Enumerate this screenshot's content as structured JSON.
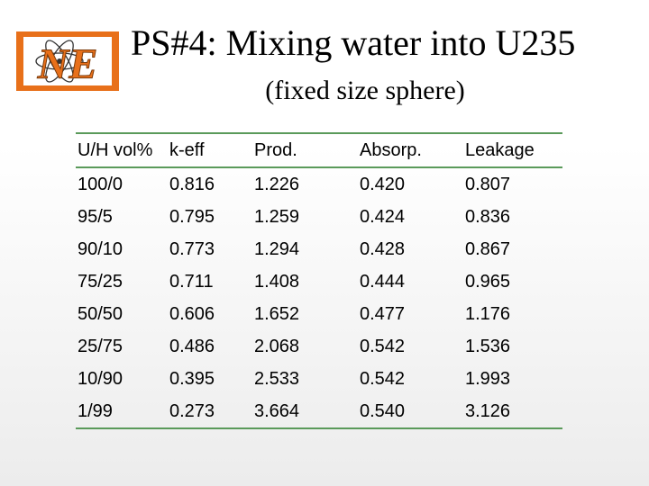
{
  "logo": {
    "text": "NE",
    "colors": {
      "frame": "#e8701a",
      "letters": "#e8701a",
      "atom": "#333333"
    }
  },
  "slide": {
    "title": "PS#4: Mixing water into U235",
    "subtitle": "(fixed size sphere)"
  },
  "table": {
    "rule_color": "#5a9a5a",
    "headers": [
      "U/H vol%",
      "k-eff",
      "Prod.",
      "Absorp.",
      "Leakage"
    ],
    "rows": [
      [
        "100/0",
        "0.816",
        "1.226",
        "0.420",
        "0.807"
      ],
      [
        "95/5",
        "0.795",
        "1.259",
        "0.424",
        "0.836"
      ],
      [
        "90/10",
        "0.773",
        "1.294",
        "0.428",
        "0.867"
      ],
      [
        "75/25",
        "0.711",
        "1.408",
        "0.444",
        "0.965"
      ],
      [
        "50/50",
        "0.606",
        "1.652",
        "0.477",
        "1.176"
      ],
      [
        "25/75",
        "0.486",
        "2.068",
        "0.542",
        "1.536"
      ],
      [
        "10/90",
        "0.395",
        "2.533",
        "0.542",
        "1.993"
      ],
      [
        "1/99",
        "0.273",
        "3.664",
        "0.540",
        "3.126"
      ]
    ]
  }
}
